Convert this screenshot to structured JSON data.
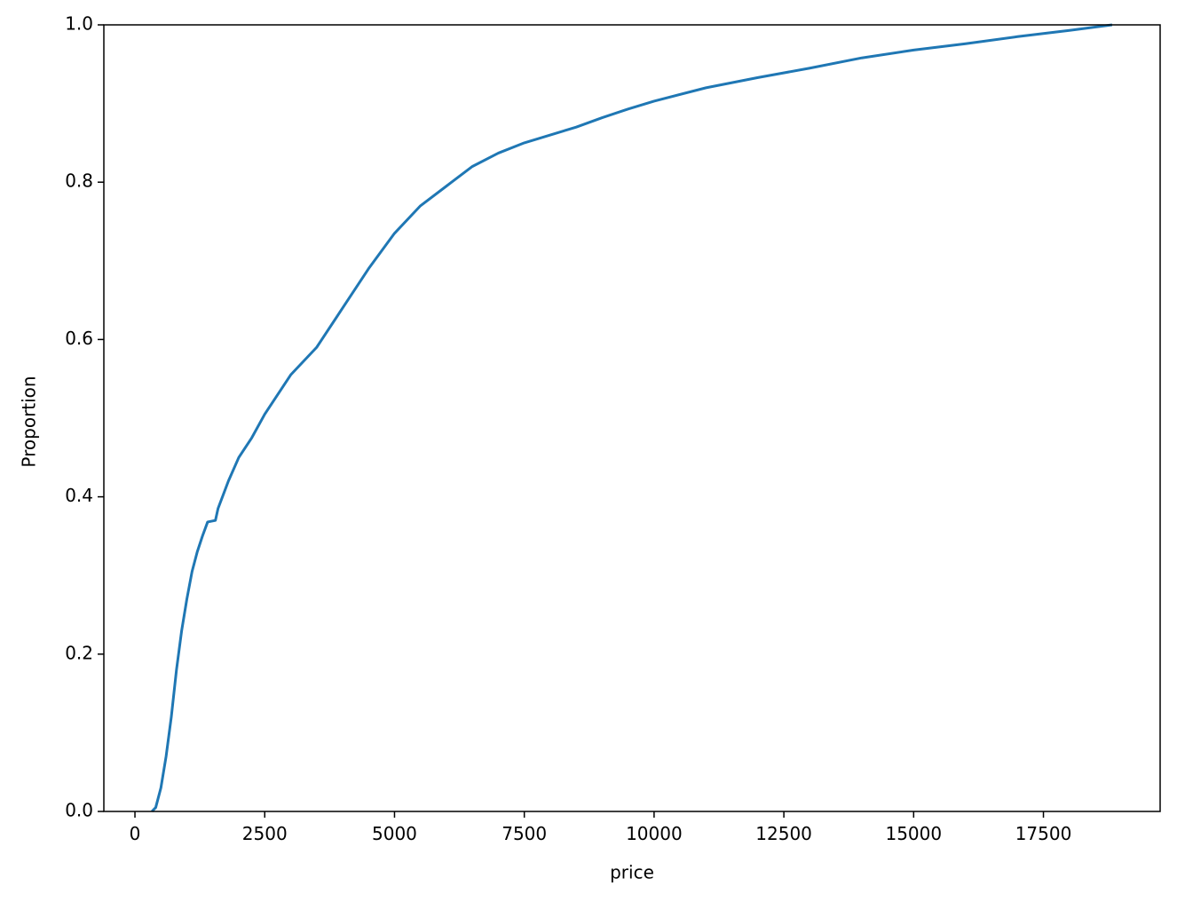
{
  "chart_data": {
    "type": "line",
    "x_label": "price",
    "y_label": "Proportion",
    "x": [
      326,
      400,
      500,
      600,
      700,
      800,
      900,
      1000,
      1100,
      1200,
      1300,
      1400,
      1550,
      1600,
      1800,
      2000,
      2250,
      2500,
      3000,
      3500,
      4000,
      4500,
      5000,
      5500,
      6000,
      6500,
      7000,
      7500,
      8000,
      8500,
      9000,
      9500,
      10000,
      11000,
      12000,
      13000,
      14000,
      15000,
      16000,
      17000,
      18000,
      18823
    ],
    "series": [
      {
        "color": "#1f77b4",
        "values": [
          0,
          0.005,
          0.03,
          0.07,
          0.12,
          0.18,
          0.23,
          0.27,
          0.305,
          0.33,
          0.35,
          0.368,
          0.37,
          0.385,
          0.42,
          0.45,
          0.475,
          0.505,
          0.555,
          0.59,
          0.64,
          0.69,
          0.735,
          0.77,
          0.795,
          0.82,
          0.837,
          0.85,
          0.86,
          0.87,
          0.882,
          0.893,
          0.903,
          0.92,
          0.933,
          0.945,
          0.958,
          0.968,
          0.976,
          0.985,
          0.993,
          1
        ]
      }
    ],
    "xlim": [
      -599,
      19748
    ],
    "ylim": [
      0,
      1
    ],
    "xticks": [
      0,
      2500,
      5000,
      7500,
      10000,
      12500,
      15000,
      17500
    ],
    "yticks": [
      {
        "value": 0,
        "label": "0.0"
      },
      0.2,
      0.4,
      0.6,
      0.8,
      {
        "value": 1,
        "label": "1.0"
      }
    ]
  }
}
